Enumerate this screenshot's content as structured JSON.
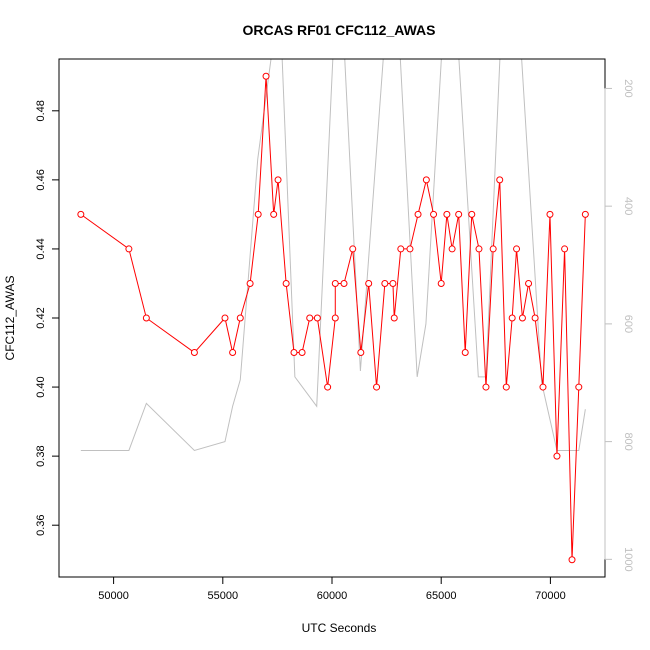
{
  "chart_data": {
    "type": "line",
    "title": "ORCAS RF01 CFC112_AWAS",
    "xlabel": "UTC Seconds",
    "ylabel": "CFC112_AWAS",
    "xlim": [
      47500,
      72500
    ],
    "ylim": [
      0.345,
      0.495
    ],
    "y2lim": [
      1030,
      150
    ],
    "x_ticks": [
      50000,
      55000,
      60000,
      65000,
      70000
    ],
    "x_tick_labels": [
      "50000",
      "55000",
      "60000",
      "65000",
      "70000"
    ],
    "y_ticks": [
      0.36,
      0.38,
      0.4,
      0.42,
      0.44,
      0.46,
      0.48
    ],
    "y_tick_labels": [
      "0.36",
      "0.38",
      "0.40",
      "0.42",
      "0.44",
      "0.46",
      "0.48"
    ],
    "y2_ticks": [
      200,
      400,
      600,
      800,
      1000
    ],
    "y2_tick_labels": [
      "200",
      "400",
      "600",
      "800",
      "1000"
    ],
    "grid": false,
    "series": [
      {
        "color": "#ff0000",
        "marker": "circle",
        "x": [
          48500,
          50700,
          51500,
          53700,
          55100,
          55450,
          55800,
          56250,
          56620,
          56980,
          57330,
          57530,
          57900,
          58260,
          58630,
          58980,
          59330,
          59800,
          60150,
          60150,
          60550,
          60950,
          61320,
          61680,
          62040,
          62420,
          62790,
          62850,
          63150,
          63570,
          63940,
          64320,
          64650,
          65000,
          65260,
          65500,
          65800,
          66100,
          66400,
          66730,
          67050,
          67380,
          67680,
          67980,
          68250,
          68450,
          68720,
          69000,
          69300,
          69660,
          69980,
          70300,
          70650,
          70990,
          71300,
          71600
        ],
        "y": [
          0.45,
          0.44,
          0.42,
          0.41,
          0.42,
          0.41,
          0.42,
          0.43,
          0.45,
          0.49,
          0.45,
          0.46,
          0.43,
          0.41,
          0.41,
          0.42,
          0.42,
          0.4,
          0.42,
          0.43,
          0.43,
          0.44,
          0.41,
          0.43,
          0.4,
          0.43,
          0.43,
          0.42,
          0.44,
          0.44,
          0.45,
          0.46,
          0.45,
          0.43,
          0.45,
          0.44,
          0.45,
          0.41,
          0.45,
          0.44,
          0.4,
          0.44,
          0.46,
          0.4,
          0.42,
          0.44,
          0.42,
          0.43,
          0.42,
          0.4,
          0.45,
          0.38,
          0.44,
          0.35,
          0.4,
          0.45
        ]
      },
      {
        "color": "#c0c0c0",
        "axis": "right",
        "x": [
          48500,
          50700,
          51500,
          53700,
          55100,
          55450,
          55800,
          56600,
          57600,
          58300,
          59300,
          60300,
          61300,
          62800,
          63900,
          64300,
          65400,
          66700,
          67050,
          68100,
          69600,
          70300,
          71300,
          71600
        ],
        "y": [
          815,
          815,
          735,
          815,
          800,
          740,
          695,
          320,
          40,
          690,
          740,
          -60,
          680,
          -80,
          690,
          600,
          -100,
          690,
          690,
          -200,
          700,
          815,
          815,
          745
        ]
      }
    ]
  }
}
